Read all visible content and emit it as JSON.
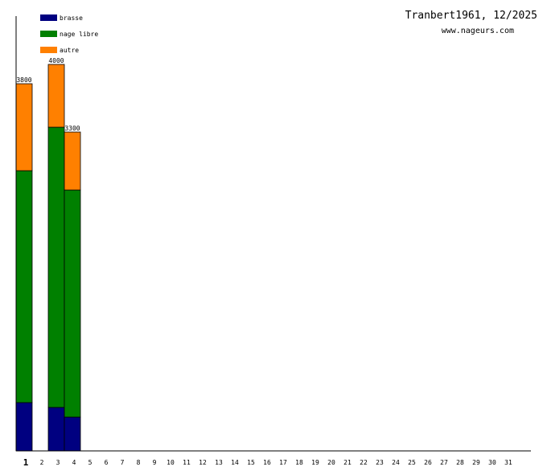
{
  "title": "Tranbert1961, 12/2025",
  "subtitle": "www.nageurs.com",
  "chart_data": {
    "type": "bar",
    "stacked": true,
    "categories": [
      "1",
      "2",
      "3",
      "4",
      "5",
      "6",
      "7",
      "8",
      "9",
      "10",
      "11",
      "12",
      "13",
      "14",
      "15",
      "16",
      "17",
      "18",
      "19",
      "20",
      "21",
      "22",
      "23",
      "24",
      "25",
      "26",
      "27",
      "28",
      "29",
      "30",
      "31"
    ],
    "highlighted_category": "1",
    "series": [
      {
        "name": "brasse",
        "color": "#000080",
        "values": [
          500,
          0,
          450,
          350,
          0,
          0,
          0,
          0,
          0,
          0,
          0,
          0,
          0,
          0,
          0,
          0,
          0,
          0,
          0,
          0,
          0,
          0,
          0,
          0,
          0,
          0,
          0,
          0,
          0,
          0,
          0
        ]
      },
      {
        "name": "nage libre",
        "color": "#008000",
        "values": [
          2400,
          0,
          2900,
          2350,
          0,
          0,
          0,
          0,
          0,
          0,
          0,
          0,
          0,
          0,
          0,
          0,
          0,
          0,
          0,
          0,
          0,
          0,
          0,
          0,
          0,
          0,
          0,
          0,
          0,
          0,
          0
        ]
      },
      {
        "name": "autre",
        "color": "#ff8000",
        "values": [
          900,
          0,
          650,
          600,
          0,
          0,
          0,
          0,
          0,
          0,
          0,
          0,
          0,
          0,
          0,
          0,
          0,
          0,
          0,
          0,
          0,
          0,
          0,
          0,
          0,
          0,
          0,
          0,
          0,
          0,
          0
        ]
      }
    ],
    "totals": [
      3800,
      0,
      4000,
      3300,
      0,
      0,
      0,
      0,
      0,
      0,
      0,
      0,
      0,
      0,
      0,
      0,
      0,
      0,
      0,
      0,
      0,
      0,
      0,
      0,
      0,
      0,
      0,
      0,
      0,
      0,
      0
    ],
    "ylim": [
      0,
      4500
    ],
    "grid": false,
    "legend_position": "top-left"
  }
}
